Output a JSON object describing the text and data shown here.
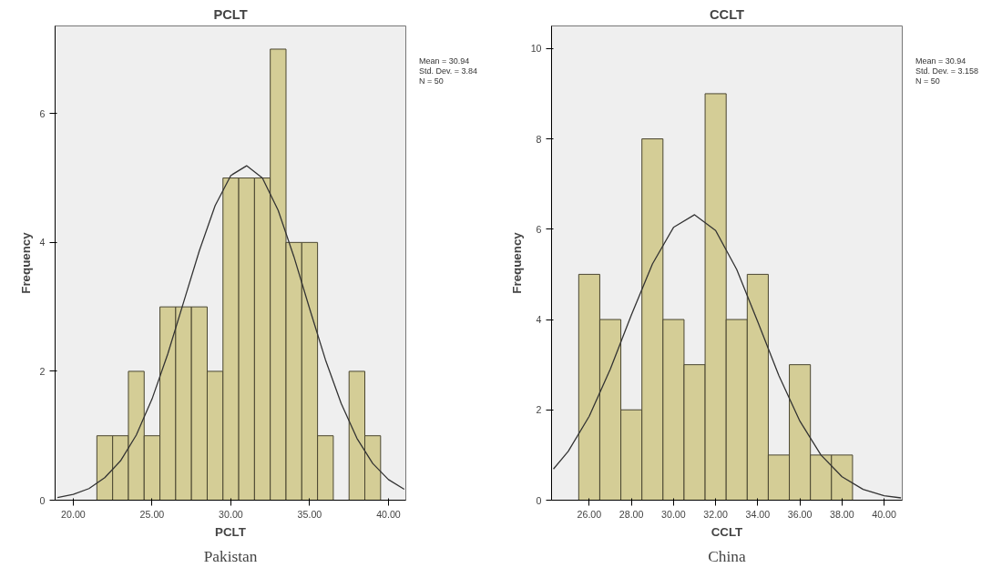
{
  "chart_data": [
    {
      "type": "histogram",
      "title": "PCLT",
      "xlabel": "PCLT",
      "ylabel": "Frequency",
      "annotations": [
        "Mean = 30.94",
        "Std. Dev. = 3.84",
        "N = 50",
        "Pakistan"
      ],
      "series": [
        {
          "color": "#d4cd96",
          "bins": [
            21.5,
            22.5,
            23.5,
            24.5,
            25.5,
            26.5,
            27.5,
            28.5,
            29.5,
            30.5,
            31.5,
            32.5,
            33.5,
            34.5,
            35.5,
            36.5,
            37.5,
            38.5,
            39.5
          ],
          "values": [
            1,
            1,
            2,
            1,
            3,
            3,
            3,
            2,
            5,
            5,
            5,
            7,
            4,
            4,
            1,
            0,
            2,
            1
          ]
        },
        {
          "type": "line",
          "color": "#333333",
          "x": [
            19,
            20,
            21,
            22,
            23,
            24,
            25,
            26,
            27,
            28,
            29,
            30,
            31,
            32,
            33,
            34,
            35,
            36,
            37,
            38,
            39,
            40,
            41
          ],
          "values": [
            0.04,
            0.09,
            0.18,
            0.35,
            0.61,
            1.01,
            1.57,
            2.27,
            3.07,
            3.87,
            4.57,
            5.04,
            5.19,
            5.0,
            4.5,
            3.78,
            2.97,
            2.18,
            1.5,
            0.96,
            0.57,
            0.32,
            0.17
          ]
        }
      ],
      "xlim": [
        18.85,
        41.1
      ],
      "ylim": [
        0,
        7.36
      ],
      "xticks": [
        {
          "value": 20,
          "label": "20.00"
        },
        {
          "value": 25,
          "label": "25.00"
        },
        {
          "value": 30,
          "label": "30.00"
        },
        {
          "value": 35,
          "label": "35.00"
        },
        {
          "value": 40,
          "label": "40.00"
        }
      ],
      "yticks": [
        0,
        2,
        4,
        6
      ],
      "grid": false
    },
    {
      "type": "histogram",
      "title": "CCLT",
      "xlabel": "CCLT",
      "ylabel": "Frequency",
      "annotations": [
        "Mean = 30.94",
        "Std. Dev. = 3.158",
        "N = 50",
        "China"
      ],
      "series": [
        {
          "color": "#d4cd96",
          "bins": [
            25.5,
            26.5,
            27.5,
            28.5,
            29.5,
            30.5,
            31.5,
            32.5,
            33.5,
            34.5,
            35.5,
            36.5,
            37.5,
            38.5
          ],
          "values": [
            5,
            4,
            2,
            8,
            4,
            3,
            9,
            4,
            5,
            1,
            3,
            1,
            1
          ]
        },
        {
          "type": "line",
          "color": "#333333",
          "x": [
            24.3,
            25,
            26,
            27,
            28,
            29,
            30,
            31,
            32,
            33,
            34,
            35,
            36,
            37,
            38,
            39,
            40,
            40.8
          ],
          "values": [
            0.69,
            1.08,
            1.86,
            2.9,
            4.1,
            5.23,
            6.04,
            6.32,
            5.97,
            5.11,
            3.95,
            2.76,
            1.75,
            1.0,
            0.52,
            0.24,
            0.1,
            0.05
          ]
        }
      ],
      "xlim": [
        24.21,
        40.86
      ],
      "ylim": [
        0,
        10.5
      ],
      "xticks": [
        {
          "value": 26,
          "label": "26.00"
        },
        {
          "value": 28,
          "label": "28.00"
        },
        {
          "value": 30,
          "label": "30.00"
        },
        {
          "value": 32,
          "label": "32.00"
        },
        {
          "value": 34,
          "label": "34.00"
        },
        {
          "value": 36,
          "label": "36.00"
        },
        {
          "value": 38,
          "label": "38.00"
        },
        {
          "value": 40,
          "label": "40.00"
        }
      ],
      "yticks": [
        0,
        2,
        4,
        6,
        8,
        10
      ],
      "grid": false
    }
  ]
}
